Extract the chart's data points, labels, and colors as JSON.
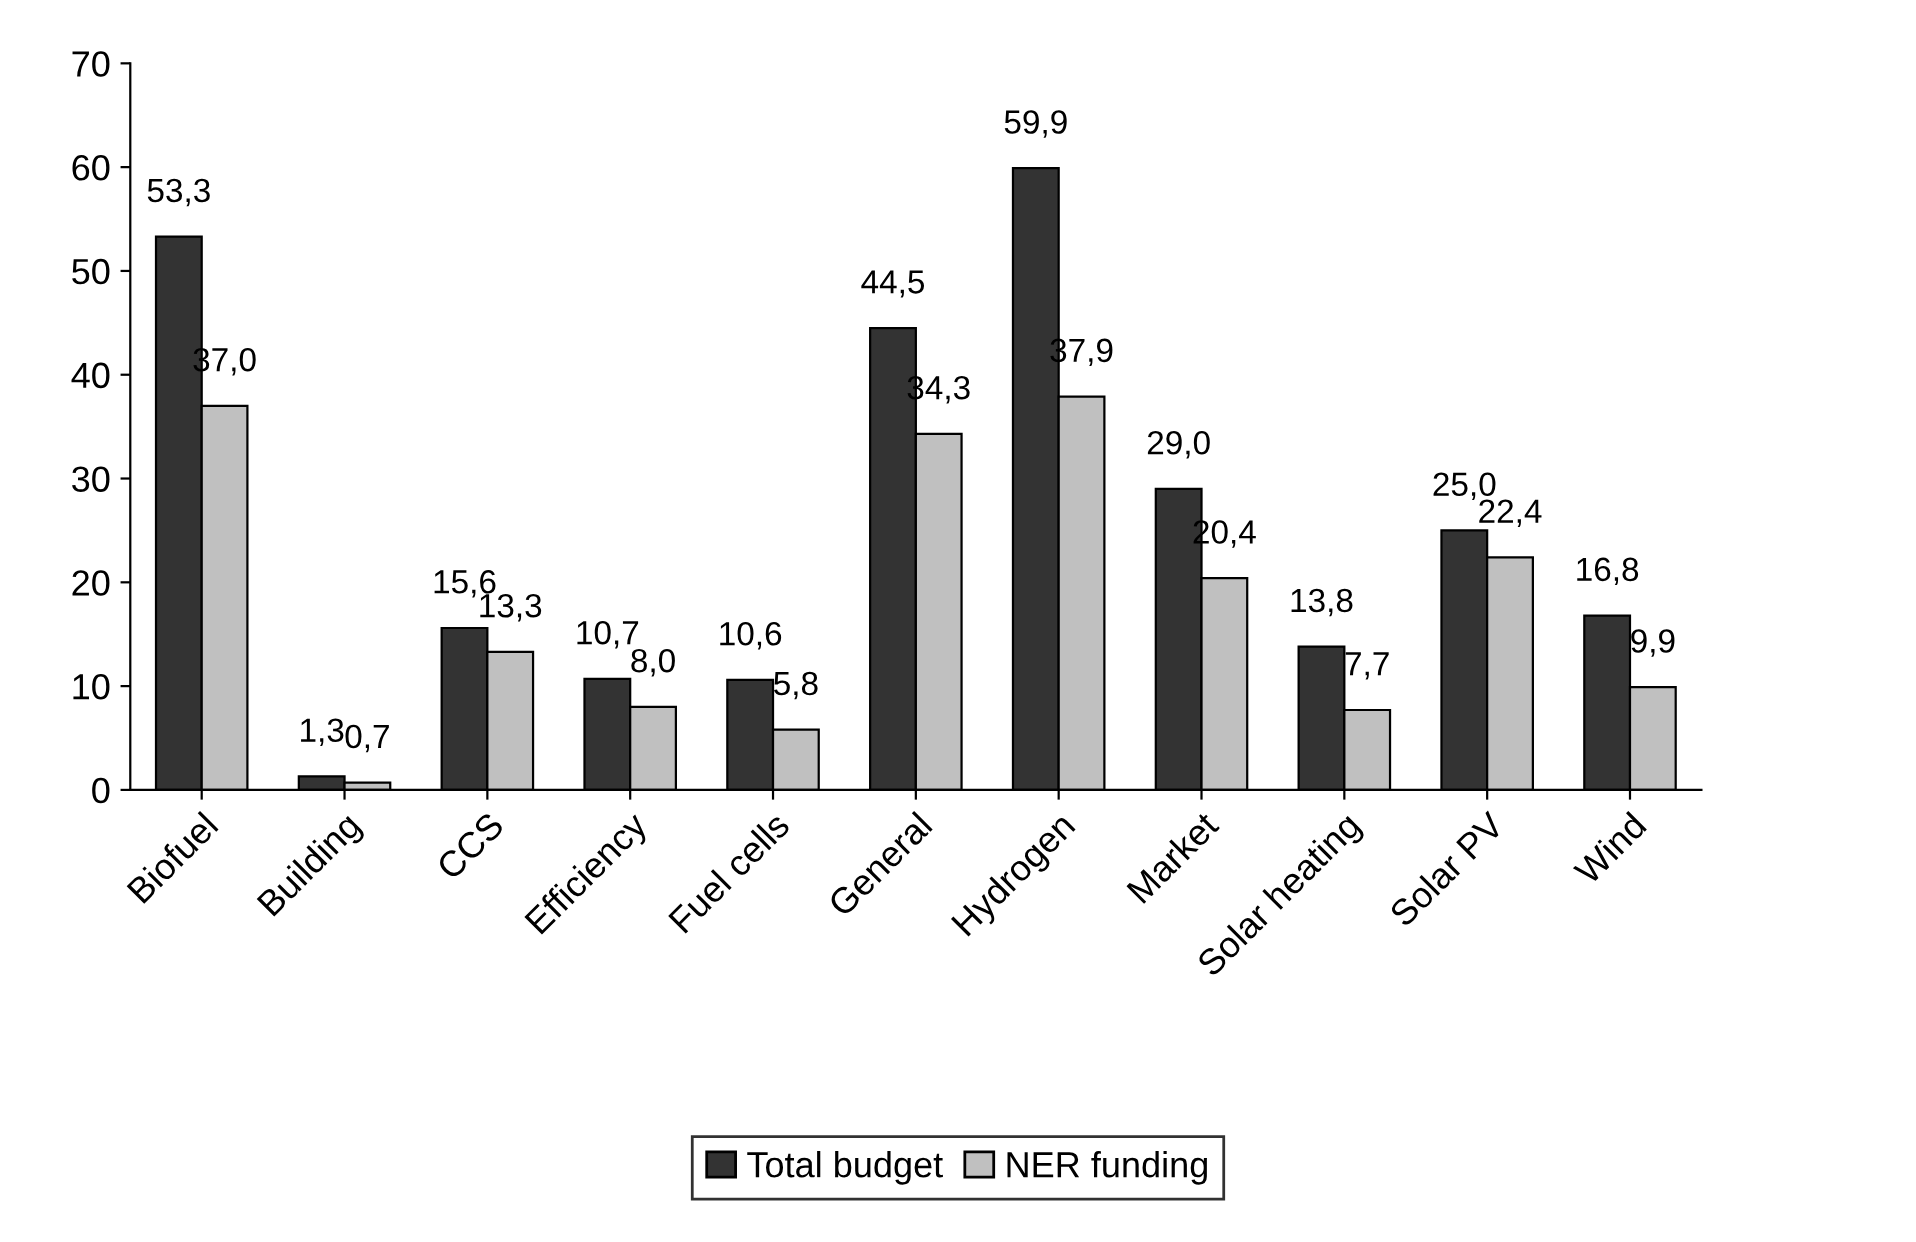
{
  "chart_data": {
    "type": "bar",
    "categories": [
      "Biofuel",
      "Building",
      "CCS",
      "Efficiency",
      "Fuel cells",
      "General",
      "Hydrogen",
      "Market",
      "Solar heating",
      "Solar PV",
      "Wind"
    ],
    "series": [
      {
        "name": "Total budget",
        "color": "#333333",
        "values": [
          53.3,
          1.3,
          15.6,
          10.7,
          10.6,
          44.5,
          59.9,
          29.0,
          13.8,
          25.0,
          16.8
        ],
        "value_labels": [
          "53,3",
          "1,3",
          "15,6",
          "10,7",
          "10,6",
          "44,5",
          "59,9",
          "29,0",
          "13,8",
          "25,0",
          "16,8"
        ]
      },
      {
        "name": "NER funding",
        "color": "#c0c0c0",
        "values": [
          37.0,
          0.7,
          13.3,
          8.0,
          5.8,
          34.3,
          37.9,
          20.4,
          7.7,
          22.4,
          9.9
        ],
        "value_labels": [
          "37,0",
          "0,7",
          "13,3",
          "8,0",
          "5,8",
          "34,3",
          "37,9",
          "20,4",
          "7,7",
          "22,4",
          "9,9"
        ]
      }
    ],
    "ylim": [
      0,
      70
    ],
    "yticks": [
      0,
      10,
      20,
      30,
      40,
      50,
      60,
      70
    ],
    "grid": false,
    "legend": "bottom"
  }
}
